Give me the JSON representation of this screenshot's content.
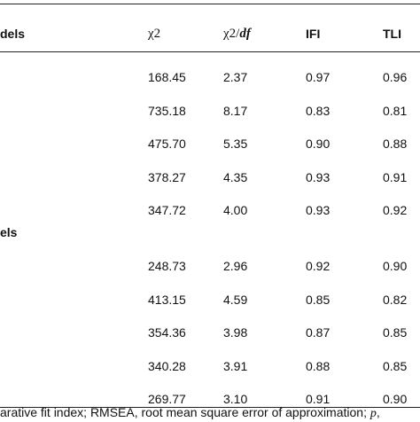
{
  "header": {
    "stub": "dels",
    "columns": [
      {
        "text": "χ2"
      },
      {
        "text": "χ2/",
        "italic": "df"
      },
      {
        "text": "IFI"
      },
      {
        "text": "TLI"
      }
    ]
  },
  "sections": [
    {
      "rows": [
        [
          "168.45",
          "2.37",
          "0.97",
          "0.96"
        ],
        [
          "735.18",
          "8.17",
          "0.83",
          "0.81"
        ],
        [
          "475.70",
          "5.35",
          "0.90",
          "0.88"
        ],
        [
          "378.27",
          "4.35",
          "0.93",
          "0.91"
        ],
        [
          "347.72",
          "4.00",
          "0.93",
          "0.92"
        ]
      ]
    },
    {
      "label": "els",
      "rows": [
        [
          "248.73",
          "2.96",
          "0.92",
          "0.90"
        ],
        [
          "413.15",
          "4.59",
          "0.85",
          "0.82"
        ],
        [
          "354.36",
          "3.98",
          "0.87",
          "0.85"
        ],
        [
          "340.28",
          "3.91",
          "0.88",
          "0.85"
        ],
        [
          "269.77",
          "3.10",
          "0.91",
          "0.90"
        ]
      ]
    }
  ],
  "footer": {
    "text": "arative fit index; RMSEA, root mean square error of approximation; ",
    "italic": "p",
    "end": ","
  }
}
